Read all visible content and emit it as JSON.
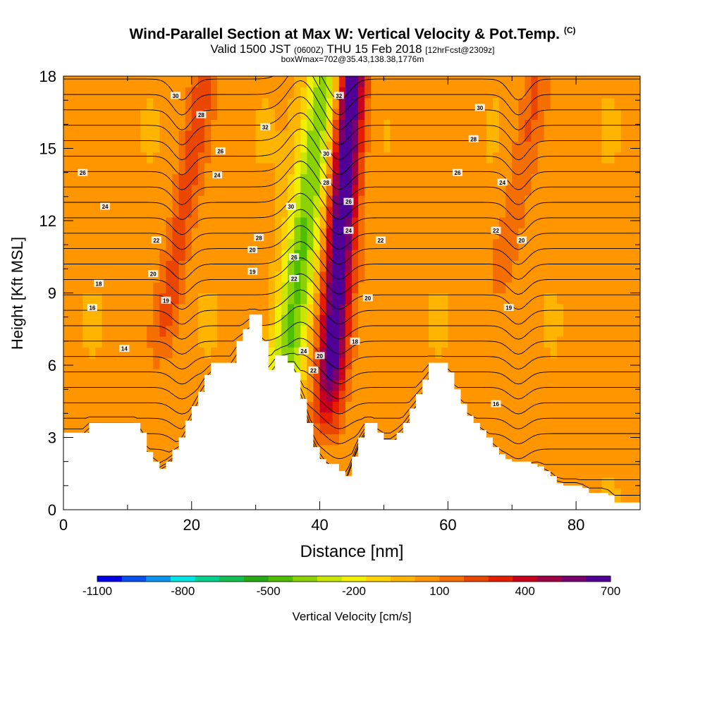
{
  "header": {
    "title": "Wind-Parallel Section at Max W: Vertical Velocity & Pot.Temp.",
    "copyright": "(C)",
    "valid_prefix": "Valid 1500 JST",
    "utc": "(0600Z)",
    "valid_date": "THU 15 Feb 2018",
    "forecast": "[12hrFcst@2309z]",
    "box_info": "boxWmax=702@35.43,138.38,1776m"
  },
  "chart_data": {
    "type": "heatmap",
    "xlabel": "Distance [nm]",
    "ylabel": "Height [Kft MSL]",
    "xlim": [
      0,
      90
    ],
    "ylim": [
      0,
      18
    ],
    "x_ticks": [
      0,
      20,
      40,
      60,
      80
    ],
    "y_ticks": [
      0,
      3,
      6,
      9,
      12,
      15,
      18
    ],
    "x_tick_labels": [
      "0",
      "20",
      "40",
      "60",
      "80"
    ],
    "y_tick_labels": [
      "0",
      "3",
      "6",
      "9",
      "12",
      "15",
      "18"
    ],
    "colorbar": {
      "label": "Vertical Velocity [cm/s]",
      "ticks": [
        "-1100",
        "-800",
        "-500",
        "-200",
        "100",
        "400",
        "700"
      ],
      "colors": [
        "#0000e6",
        "#0a50f0",
        "#0a96f0",
        "#00e6e6",
        "#00d28c",
        "#14be50",
        "#28aa14",
        "#50be00",
        "#8cd200",
        "#c8e600",
        "#f0f000",
        "#ffd200",
        "#ffb400",
        "#ff9600",
        "#f56e00",
        "#eb4600",
        "#e61e00",
        "#c8001e",
        "#a00046",
        "#78006e",
        "#500096"
      ]
    },
    "terrain": [
      [
        0,
        3.2
      ],
      [
        1,
        3.2
      ],
      [
        2,
        3.2
      ],
      [
        3,
        3.2
      ],
      [
        4,
        3.6
      ],
      [
        5,
        3.6
      ],
      [
        6,
        3.6
      ],
      [
        7,
        3.6
      ],
      [
        8,
        3.6
      ],
      [
        9,
        3.6
      ],
      [
        10,
        3.6
      ],
      [
        11,
        3.6
      ],
      [
        12,
        3.2
      ],
      [
        13,
        2.4
      ],
      [
        14,
        2.0
      ],
      [
        15,
        1.7
      ],
      [
        16,
        2.0
      ],
      [
        17,
        2.5
      ],
      [
        18,
        3.0
      ],
      [
        19,
        3.7
      ],
      [
        20,
        4.3
      ],
      [
        21,
        4.9
      ],
      [
        22,
        5.6
      ],
      [
        23,
        6.1
      ],
      [
        24,
        6.1
      ],
      [
        25,
        6.1
      ],
      [
        26,
        6.1
      ],
      [
        27,
        7.0
      ],
      [
        28,
        7.5
      ],
      [
        29,
        8.1
      ],
      [
        30,
        8.1
      ],
      [
        31,
        7.0
      ],
      [
        32,
        5.8
      ],
      [
        33,
        6.4
      ],
      [
        34,
        6.4
      ],
      [
        35,
        6.1
      ],
      [
        36,
        5.7
      ],
      [
        37,
        4.6
      ],
      [
        38,
        3.6
      ],
      [
        39,
        2.6
      ],
      [
        40,
        2.1
      ],
      [
        41,
        1.9
      ],
      [
        42,
        1.9
      ],
      [
        43,
        1.6
      ],
      [
        44,
        1.4
      ],
      [
        45,
        2.2
      ],
      [
        46,
        3.0
      ],
      [
        47,
        3.6
      ],
      [
        48,
        3.6
      ],
      [
        49,
        3.2
      ],
      [
        50,
        2.9
      ],
      [
        51,
        2.9
      ],
      [
        52,
        3.2
      ],
      [
        53,
        3.6
      ],
      [
        54,
        4.2
      ],
      [
        55,
        4.8
      ],
      [
        56,
        5.4
      ],
      [
        57,
        6.1
      ],
      [
        58,
        6.1
      ],
      [
        59,
        6.1
      ],
      [
        60,
        5.7
      ],
      [
        61,
        5.0
      ],
      [
        62,
        4.4
      ],
      [
        63,
        3.9
      ],
      [
        64,
        3.6
      ],
      [
        65,
        3.3
      ],
      [
        66,
        3.0
      ],
      [
        67,
        2.6
      ],
      [
        68,
        2.3
      ],
      [
        69,
        2.1
      ],
      [
        70,
        2.0
      ],
      [
        71,
        2.0
      ],
      [
        72,
        2.0
      ],
      [
        73,
        1.9
      ],
      [
        74,
        1.8
      ],
      [
        75,
        1.6
      ],
      [
        76,
        1.4
      ],
      [
        77,
        1.1
      ],
      [
        78,
        1.0
      ],
      [
        79,
        1.0
      ],
      [
        80,
        1.0
      ],
      [
        81,
        0.9
      ],
      [
        82,
        0.7
      ],
      [
        83,
        0.7
      ],
      [
        84,
        0.7
      ],
      [
        85,
        0.6
      ],
      [
        86,
        0.3
      ],
      [
        87,
        0.3
      ],
      [
        88,
        0.3
      ],
      [
        89,
        0.3
      ],
      [
        90,
        0.3
      ]
    ],
    "updrafts": [
      {
        "x0": 41,
        "x1": 45,
        "z0": 3,
        "z1": 18,
        "amp": 700,
        "width": 2.3
      },
      {
        "x0": 15,
        "x1": 22,
        "z0": 6,
        "z1": 18,
        "amp": 190,
        "width": 2.0
      },
      {
        "x0": 68,
        "x1": 74,
        "z0": 9,
        "z1": 18,
        "amp": 140,
        "width": 2.0
      }
    ],
    "downdrafts": [
      {
        "x0": 33,
        "x1": 41,
        "z0": 3,
        "z1": 18,
        "amp": -470,
        "width": 2.8
      }
    ],
    "contour_labels": [
      {
        "x": 17.5,
        "y": 17.2,
        "text": "30"
      },
      {
        "x": 21.5,
        "y": 16.4,
        "text": "28"
      },
      {
        "x": 24.5,
        "y": 14.9,
        "text": "26"
      },
      {
        "x": 24.0,
        "y": 13.9,
        "text": "24"
      },
      {
        "x": 3.0,
        "y": 14.0,
        "text": "26"
      },
      {
        "x": 6.5,
        "y": 12.6,
        "text": "24"
      },
      {
        "x": 14.5,
        "y": 11.2,
        "text": "22"
      },
      {
        "x": 14.0,
        "y": 9.8,
        "text": "20"
      },
      {
        "x": 16.0,
        "y": 8.7,
        "text": "19"
      },
      {
        "x": 5.5,
        "y": 9.4,
        "text": "18"
      },
      {
        "x": 4.5,
        "y": 8.4,
        "text": "16"
      },
      {
        "x": 9.5,
        "y": 6.7,
        "text": "14"
      },
      {
        "x": 31.5,
        "y": 15.9,
        "text": "32"
      },
      {
        "x": 35.5,
        "y": 12.6,
        "text": "30"
      },
      {
        "x": 30.5,
        "y": 11.3,
        "text": "28"
      },
      {
        "x": 36.0,
        "y": 10.5,
        "text": "26"
      },
      {
        "x": 29.5,
        "y": 10.8,
        "text": "20"
      },
      {
        "x": 29.5,
        "y": 9.9,
        "text": "19"
      },
      {
        "x": 36.0,
        "y": 9.6,
        "text": "22"
      },
      {
        "x": 37.5,
        "y": 6.6,
        "text": "24"
      },
      {
        "x": 39.0,
        "y": 5.8,
        "text": "22"
      },
      {
        "x": 40.0,
        "y": 6.4,
        "text": "20"
      },
      {
        "x": 43.0,
        "y": 17.2,
        "text": "32"
      },
      {
        "x": 41.0,
        "y": 14.8,
        "text": "30"
      },
      {
        "x": 41.0,
        "y": 13.6,
        "text": "28"
      },
      {
        "x": 44.5,
        "y": 12.8,
        "text": "26"
      },
      {
        "x": 44.5,
        "y": 11.6,
        "text": "24"
      },
      {
        "x": 49.5,
        "y": 11.2,
        "text": "22"
      },
      {
        "x": 47.5,
        "y": 8.8,
        "text": "20"
      },
      {
        "x": 45.5,
        "y": 7.0,
        "text": "18"
      },
      {
        "x": 65.0,
        "y": 16.7,
        "text": "30"
      },
      {
        "x": 64.0,
        "y": 15.4,
        "text": "28"
      },
      {
        "x": 61.5,
        "y": 14.0,
        "text": "26"
      },
      {
        "x": 68.5,
        "y": 13.6,
        "text": "24"
      },
      {
        "x": 67.5,
        "y": 11.6,
        "text": "22"
      },
      {
        "x": 71.5,
        "y": 11.2,
        "text": "20"
      },
      {
        "x": 69.5,
        "y": 8.4,
        "text": "19"
      },
      {
        "x": 67.5,
        "y": 4.4,
        "text": "16"
      }
    ]
  }
}
